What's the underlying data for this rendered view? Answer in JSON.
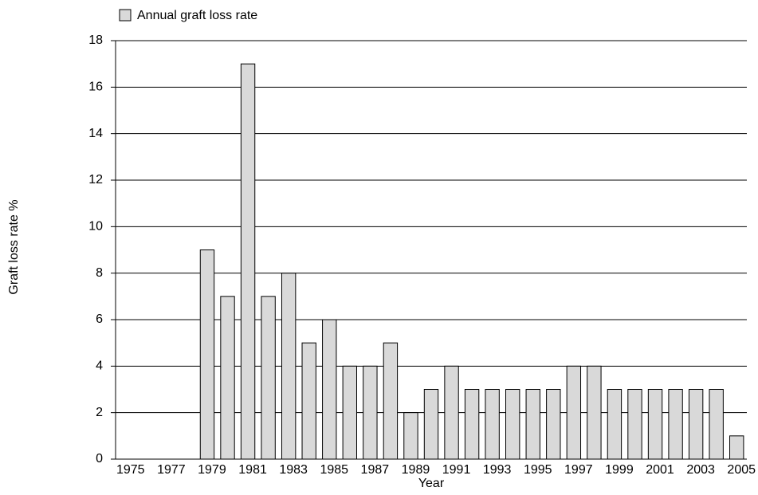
{
  "chart_data": {
    "type": "bar",
    "x_label": "Year",
    "y_label": "Graft loss rate %",
    "categories": [
      "1975",
      null,
      "1977",
      null,
      "1979",
      null,
      "1981",
      null,
      "1983",
      null,
      "1985",
      null,
      "1987",
      null,
      "1989",
      null,
      "1991",
      null,
      "1993",
      null,
      "1995",
      null,
      "1997",
      null,
      "1999",
      null,
      "2001",
      null,
      "2003",
      null,
      "2005"
    ],
    "series": [
      {
        "name": "Annual graft loss rate",
        "color": "#d9d9d9",
        "values": [
          0,
          0,
          0,
          0,
          9,
          7,
          17,
          7,
          8,
          5,
          6,
          4,
          4,
          5,
          2,
          3,
          4,
          3,
          3,
          3,
          3,
          3,
          4,
          4,
          3,
          3,
          3,
          3,
          3,
          3,
          1
        ]
      }
    ],
    "ylim": [
      0,
      18
    ],
    "yticks": [
      0,
      2,
      4,
      6,
      8,
      10,
      12,
      14,
      16,
      18
    ],
    "grid": true,
    "legend": "top-left"
  }
}
